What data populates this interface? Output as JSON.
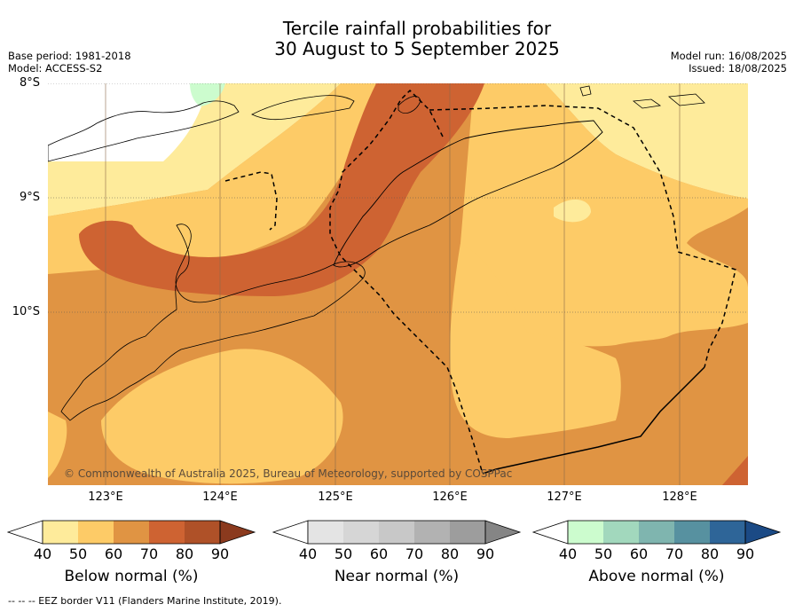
{
  "header": {
    "title_line1": "Tercile rainfall probabilities for",
    "title_line2": "30 August to 5 September 2025",
    "base_period": "Base period: 1981-2018",
    "model": "Model: ACCESS-S2",
    "model_run": "Model run: 16/08/2025",
    "issued": "Issued: 18/08/2025"
  },
  "axes": {
    "lat_labels": [
      "8°S",
      "9°S",
      "10°S"
    ],
    "lon_labels": [
      "123°E",
      "124°E",
      "125°E",
      "126°E",
      "127°E",
      "128°E"
    ]
  },
  "map": {
    "copyright": "© Commonwealth of Australia 2025, Bureau of Meteorology, supported by COSPPac",
    "colors": {
      "below_40_50": "#feeb9b",
      "below_50_60": "#fdcb67",
      "below_60_70": "#e09443",
      "below_70_80": "#ce6332",
      "below_80_90": "#af5128",
      "above_40_50": "#ccfcce",
      "land_outline": "#000000"
    }
  },
  "colorbars": [
    {
      "title": "Below normal (%)",
      "ticks": [
        "40",
        "50",
        "60",
        "70",
        "80",
        "90"
      ],
      "colors": [
        "#feeb9b",
        "#fdcb67",
        "#e09443",
        "#ce6332",
        "#af5128"
      ],
      "over_color": "#8b3a1e"
    },
    {
      "title": "Near normal (%)",
      "ticks": [
        "40",
        "50",
        "60",
        "70",
        "80",
        "90"
      ],
      "colors": [
        "#e4e4e4",
        "#d6d6d6",
        "#c8c8c8",
        "#b2b2b2",
        "#9d9d9d"
      ],
      "over_color": "#858585"
    },
    {
      "title": "Above normal (%)",
      "ticks": [
        "40",
        "50",
        "60",
        "70",
        "80",
        "90"
      ],
      "colors": [
        "#ccfcce",
        "#a2d8bd",
        "#7fb5af",
        "#5791a0",
        "#2e6598"
      ],
      "over_color": "#1b4a85"
    }
  ],
  "footnote": "-- -- -- EEZ border V11 (Flanders Marine Institute, 2019)."
}
